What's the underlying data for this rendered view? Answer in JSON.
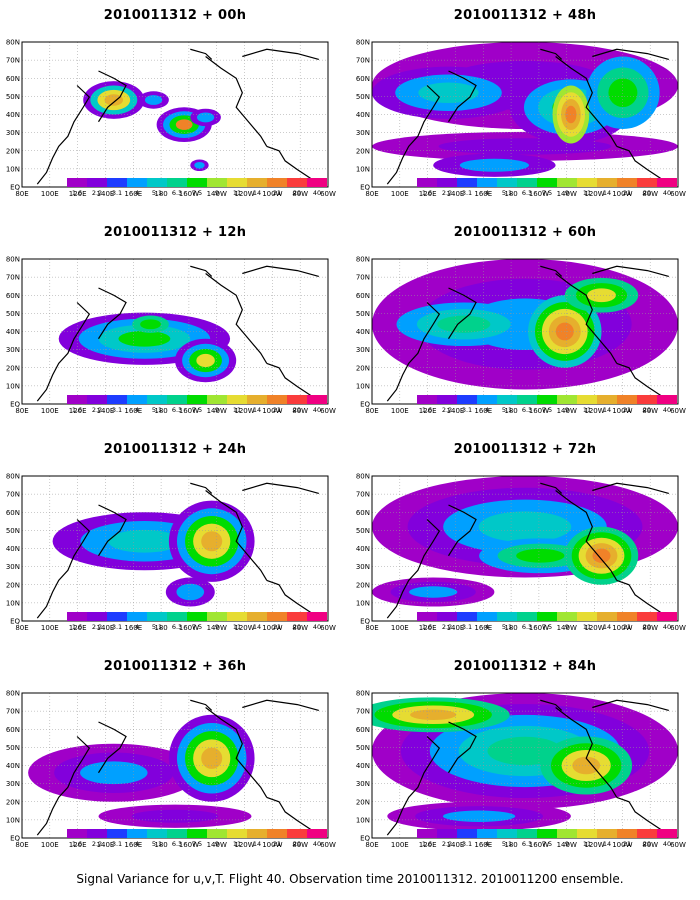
{
  "map": {
    "lat_labels": [
      "80N",
      "70N",
      "60N",
      "50N",
      "40N",
      "30N",
      "20N",
      "10N",
      "EQ"
    ],
    "lon_labels": [
      "80E",
      "100E",
      "120E",
      "140E",
      "160E",
      "180",
      "160W",
      "140W",
      "120W",
      "100W",
      "80W",
      "60W"
    ]
  },
  "colorbar": {
    "labels": [
      "1.6",
      "2.2",
      "3.1",
      "4",
      "5.1",
      "6.3",
      "7.5",
      "9",
      "11",
      "14",
      "21",
      "29",
      "40"
    ],
    "colors": [
      "#a000c8",
      "#8200dc",
      "#1e3cff",
      "#00a0ff",
      "#00c8c8",
      "#00d28c",
      "#00dc00",
      "#a0e632",
      "#e6dc32",
      "#e6af2d",
      "#f08228",
      "#fa3c3c",
      "#f00082"
    ]
  },
  "panels": [
    {
      "id": "p00",
      "title": "2010011312 + 00h"
    },
    {
      "id": "p48",
      "title": "2010011312 + 48h"
    },
    {
      "id": "p12",
      "title": "2010011312 + 12h"
    },
    {
      "id": "p60",
      "title": "2010011312 + 60h"
    },
    {
      "id": "p24",
      "title": "2010011312 + 24h"
    },
    {
      "id": "p72",
      "title": "2010011312 + 72h"
    },
    {
      "id": "p36",
      "title": "2010011312 + 36h"
    },
    {
      "id": "p84",
      "title": "2010011312 + 84h"
    }
  ],
  "caption": "Signal Variance for u,v,T. Flight 40. Observation time 2010011312. 2010011200 ensemble."
}
